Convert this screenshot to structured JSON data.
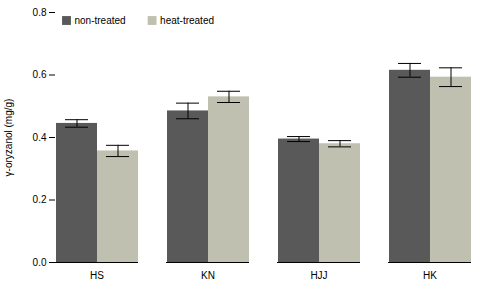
{
  "chart_data": {
    "type": "bar",
    "categories": [
      "HS",
      "KN",
      "HJJ",
      "HK"
    ],
    "series": [
      {
        "name": "non-treated",
        "color": "#595959",
        "values": [
          0.445,
          0.485,
          0.395,
          0.615
        ],
        "errors": [
          0.012,
          0.025,
          0.008,
          0.022
        ]
      },
      {
        "name": "heat-treated",
        "color": "#c0c0b0",
        "values": [
          0.357,
          0.53,
          0.38,
          0.593
        ],
        "errors": [
          0.018,
          0.018,
          0.01,
          0.03
        ]
      }
    ],
    "ylabel": "γ-oryzanol (mg/g)",
    "ylim": [
      0,
      0.8
    ],
    "yticks": [
      0,
      0.2,
      0.4,
      0.6,
      0.8
    ],
    "legend": "upper left",
    "grid": false
  }
}
